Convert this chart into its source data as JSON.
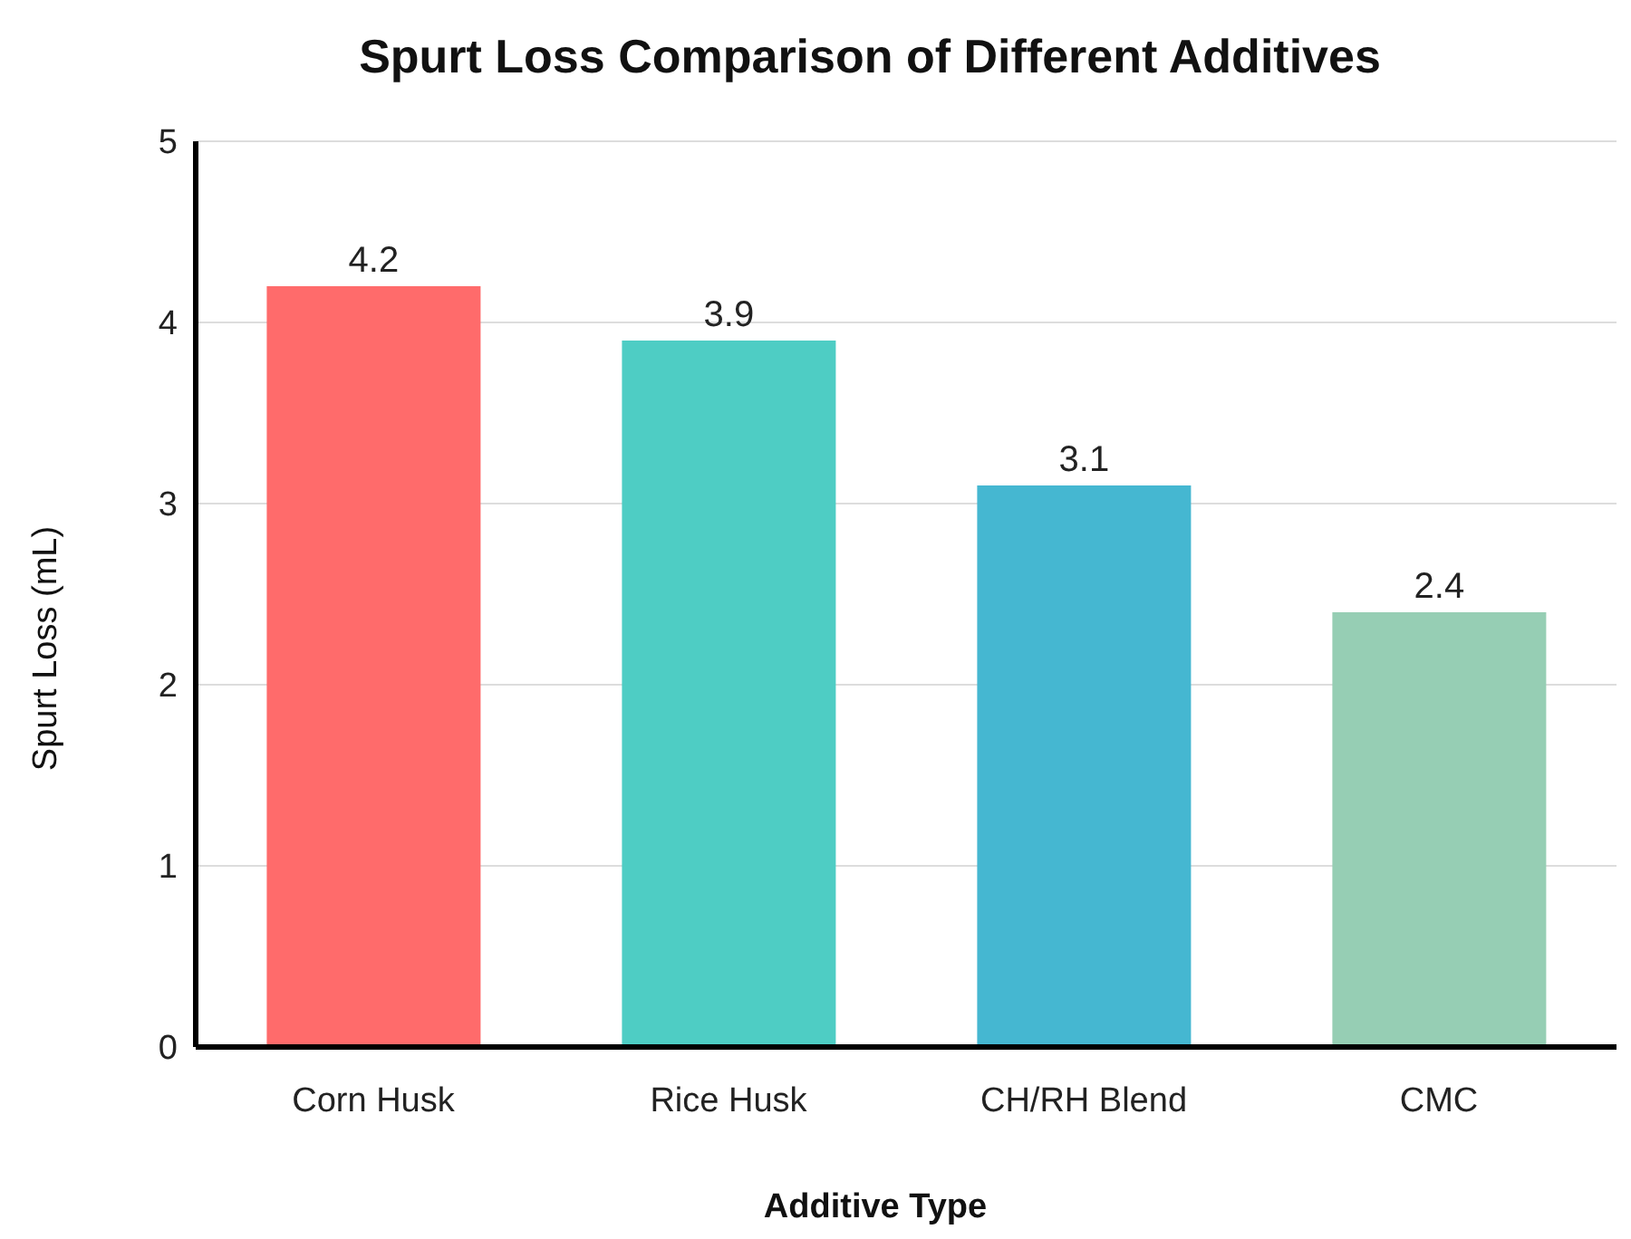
{
  "chart_data": {
    "type": "bar",
    "title": "Spurt Loss Comparison of Different Additives",
    "xlabel": "Additive Type",
    "ylabel": "Spurt Loss (mL)",
    "categories": [
      "Corn Husk",
      "Rice Husk",
      "CH/RH Blend",
      "CMC"
    ],
    "values": [
      4.2,
      3.9,
      3.1,
      2.4
    ],
    "colors": [
      "#ff6b6b",
      "#4ecdc4",
      "#45b7d1",
      "#96ceb4"
    ],
    "ylim": [
      0,
      5
    ],
    "yticks": [
      0,
      1,
      2,
      3,
      4,
      5
    ],
    "grid": "y",
    "data_labels": true
  }
}
